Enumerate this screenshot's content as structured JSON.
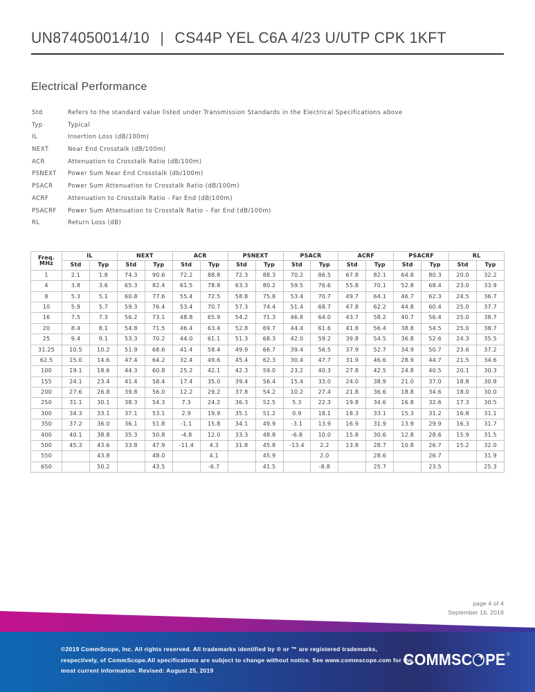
{
  "header": {
    "part_number": "UN874050014/10",
    "separator": "|",
    "product_name": "CS44P YEL C6A 4/23 U/UTP CPK 1KFT"
  },
  "section": {
    "title": "Electrical Performance"
  },
  "definitions": [
    {
      "term": "Std",
      "description": "Refers to the standard value listed under Transmission Standards in the Electrical Specifications above"
    },
    {
      "term": "Typ",
      "description": "Typical"
    },
    {
      "term": "IL",
      "description": "Insertion Loss (dB/100m)"
    },
    {
      "term": "NEXT",
      "description": "Near End Crosstalk (dB/100m)"
    },
    {
      "term": "ACR",
      "description": "Attenuation to Crosstalk Ratio (dB/100m)"
    },
    {
      "term": "PSNEXT",
      "description": "Power Sum Near End Crosstalk (db/100m)"
    },
    {
      "term": "PSACR",
      "description": "Power Sum Attenuation to Crosstalk Ratio (dB/100m)"
    },
    {
      "term": "ACRF",
      "description": "Attenuation to Crosstalk Ratio - Far End (dB/100m)"
    },
    {
      "term": "PSACRF",
      "description": "Power Sum Attenuation to Crosstalk Ratio – Far End (dB/100m)"
    },
    {
      "term": "RL",
      "description": "Return Loss (dB)"
    }
  ],
  "table": {
    "freq_header_line1": "Freq.",
    "freq_header_line2": "MHz",
    "groups": [
      "IL",
      "NEXT",
      "ACR",
      "PSNEXT",
      "PSACR",
      "ACRF",
      "PSACRF",
      "RL"
    ],
    "subheaders": [
      "Std",
      "Typ"
    ],
    "rows": [
      {
        "freq": "1",
        "values": [
          "2.1",
          "1.8",
          "74.3",
          "90.6",
          "72.2",
          "88.8",
          "72.3",
          "88.3",
          "70.2",
          "86.5",
          "67.8",
          "82.1",
          "64.8",
          "80.3",
          "20.0",
          "32.2"
        ]
      },
      {
        "freq": "4",
        "values": [
          "3.8",
          "3.6",
          "65.3",
          "82.4",
          "61.5",
          "78.8",
          "63.3",
          "80.2",
          "59.5",
          "76.6",
          "55.8",
          "70.1",
          "52.8",
          "68.4",
          "23.0",
          "33.9"
        ]
      },
      {
        "freq": "8",
        "values": [
          "5.3",
          "5.1",
          "60.8",
          "77.6",
          "55.4",
          "72.5",
          "58.8",
          "75.8",
          "53.4",
          "70.7",
          "49.7",
          "64.1",
          "46.7",
          "62.3",
          "24.5",
          "36.7"
        ]
      },
      {
        "freq": "10",
        "values": [
          "5.9",
          "5.7",
          "59.3",
          "76.4",
          "53.4",
          "70.7",
          "57.3",
          "74.4",
          "51.4",
          "68.7",
          "47.8",
          "62.2",
          "44.8",
          "60.4",
          "25.0",
          "37.7"
        ]
      },
      {
        "freq": "16",
        "values": [
          "7.5",
          "7.3",
          "56.2",
          "73.1",
          "48.8",
          "65.9",
          "54.2",
          "71.3",
          "46.8",
          "64.0",
          "43.7",
          "58.2",
          "40.7",
          "56.4",
          "25.0",
          "38.7"
        ]
      },
      {
        "freq": "20",
        "values": [
          "8.4",
          "8.1",
          "54.8",
          "71.5",
          "46.4",
          "63.4",
          "52.8",
          "69.7",
          "44.4",
          "61.6",
          "41.8",
          "56.4",
          "38.8",
          "54.5",
          "25.0",
          "38.7"
        ]
      },
      {
        "freq": "25",
        "values": [
          "9.4",
          "9.1",
          "53.3",
          "70.2",
          "44.0",
          "61.1",
          "51.3",
          "68.3",
          "42.0",
          "59.2",
          "39.8",
          "54.5",
          "36.8",
          "52.6",
          "24.3",
          "35.5"
        ]
      },
      {
        "freq": "31.25",
        "values": [
          "10.5",
          "10.2",
          "51.9",
          "68.6",
          "41.4",
          "58.4",
          "49.9",
          "66.7",
          "39.4",
          "56.5",
          "37.9",
          "52.7",
          "34.9",
          "50.7",
          "23.6",
          "37.2"
        ]
      },
      {
        "freq": "62.5",
        "values": [
          "15.0",
          "14.6",
          "47.4",
          "64.2",
          "32.4",
          "49.6",
          "45.4",
          "62.3",
          "30.4",
          "47.7",
          "31.9",
          "46.6",
          "28.9",
          "44.7",
          "21.5",
          "34.6"
        ]
      },
      {
        "freq": "100",
        "values": [
          "19.1",
          "18.6",
          "44.3",
          "60.8",
          "25.2",
          "42.1",
          "42.3",
          "59.0",
          "23.2",
          "40.3",
          "27.8",
          "42.5",
          "24.8",
          "40.5",
          "20.1",
          "30.3"
        ]
      },
      {
        "freq": "155",
        "values": [
          "24.1",
          "23.4",
          "41.4",
          "58.4",
          "17.4",
          "35.0",
          "39.4",
          "56.4",
          "15.4",
          "33.0",
          "24.0",
          "38.9",
          "21.0",
          "37.0",
          "18.8",
          "30.8"
        ]
      },
      {
        "freq": "200",
        "values": [
          "27.6",
          "26.8",
          "39.8",
          "56.0",
          "12.2",
          "29.2",
          "37.8",
          "54.2",
          "10.2",
          "27.4",
          "21.8",
          "36.6",
          "18.8",
          "34.6",
          "18.0",
          "30.0"
        ]
      },
      {
        "freq": "250",
        "values": [
          "31.1",
          "30.1",
          "38.3",
          "54.3",
          "7.3",
          "24.2",
          "36.3",
          "52.5",
          "5.3",
          "22.3",
          "19.8",
          "34.6",
          "16.8",
          "32.6",
          "17.3",
          "30.5"
        ]
      },
      {
        "freq": "300",
        "values": [
          "34.3",
          "33.1",
          "37.1",
          "53.1",
          "2.9",
          "19.9",
          "35.1",
          "51.2",
          "0.9",
          "18.1",
          "18.3",
          "33.1",
          "15.3",
          "31.2",
          "16.8",
          "31.1"
        ]
      },
      {
        "freq": "350",
        "values": [
          "37.2",
          "36.0",
          "36.1",
          "51.8",
          "-1.1",
          "15.8",
          "34.1",
          "49.9",
          "-3.1",
          "13.9",
          "16.9",
          "31.9",
          "13.9",
          "29.9",
          "16.3",
          "31.7"
        ]
      },
      {
        "freq": "400",
        "values": [
          "40.1",
          "38.8",
          "35.3",
          "50.8",
          "-4.8",
          "12.0",
          "33.3",
          "48.8",
          "-6.8",
          "10.0",
          "15.8",
          "30.6",
          "12.8",
          "28.6",
          "15.9",
          "31.5"
        ]
      },
      {
        "freq": "500",
        "values": [
          "45.3",
          "43.6",
          "33.8",
          "47.9",
          "-11.4",
          "4.3",
          "31.8",
          "45.8",
          "-13.4",
          "2.2",
          "13.8",
          "28.7",
          "10.8",
          "26.7",
          "15.2",
          "32.0"
        ]
      },
      {
        "freq": "550",
        "values": [
          "",
          "43.8",
          "",
          "48.0",
          "",
          "4.1",
          "",
          "45.9",
          "",
          "2.0",
          "",
          "28.6",
          "",
          "26.7",
          "",
          "31.9"
        ]
      },
      {
        "freq": "650",
        "values": [
          "",
          "50.2",
          "",
          "43.5",
          "",
          "-6.7",
          "",
          "41.5",
          "",
          "-8.8",
          "",
          "25.7",
          "",
          "23.5",
          "",
          "25.3"
        ]
      }
    ]
  },
  "page_note": {
    "page": "page 4 of 4",
    "date": "September 16, 2019"
  },
  "footer": {
    "legal_lines": [
      "©2019 CommScope, Inc. All rights reserved. All trademarks identified by ® or ™ are registered trademarks,",
      "respectively, of CommScope.All specifications are subject to change without notice. See www.commscope.com for the",
      "most current information. Revised: August 25, 2019"
    ],
    "logo": {
      "left": "COMMSC",
      "right": "PE",
      "reg": "®"
    }
  },
  "colors": {
    "wedge_start": "#c3138e",
    "wedge_mid": "#a01d90",
    "wedge_purple": "#6d2a94",
    "wedge_end": "#37379b",
    "footer_blue_left": "#0e69b4",
    "footer_blue_dark": "#29306f",
    "footer_blue_right": "#2e4dab",
    "logo_navy": "#1f3580"
  }
}
